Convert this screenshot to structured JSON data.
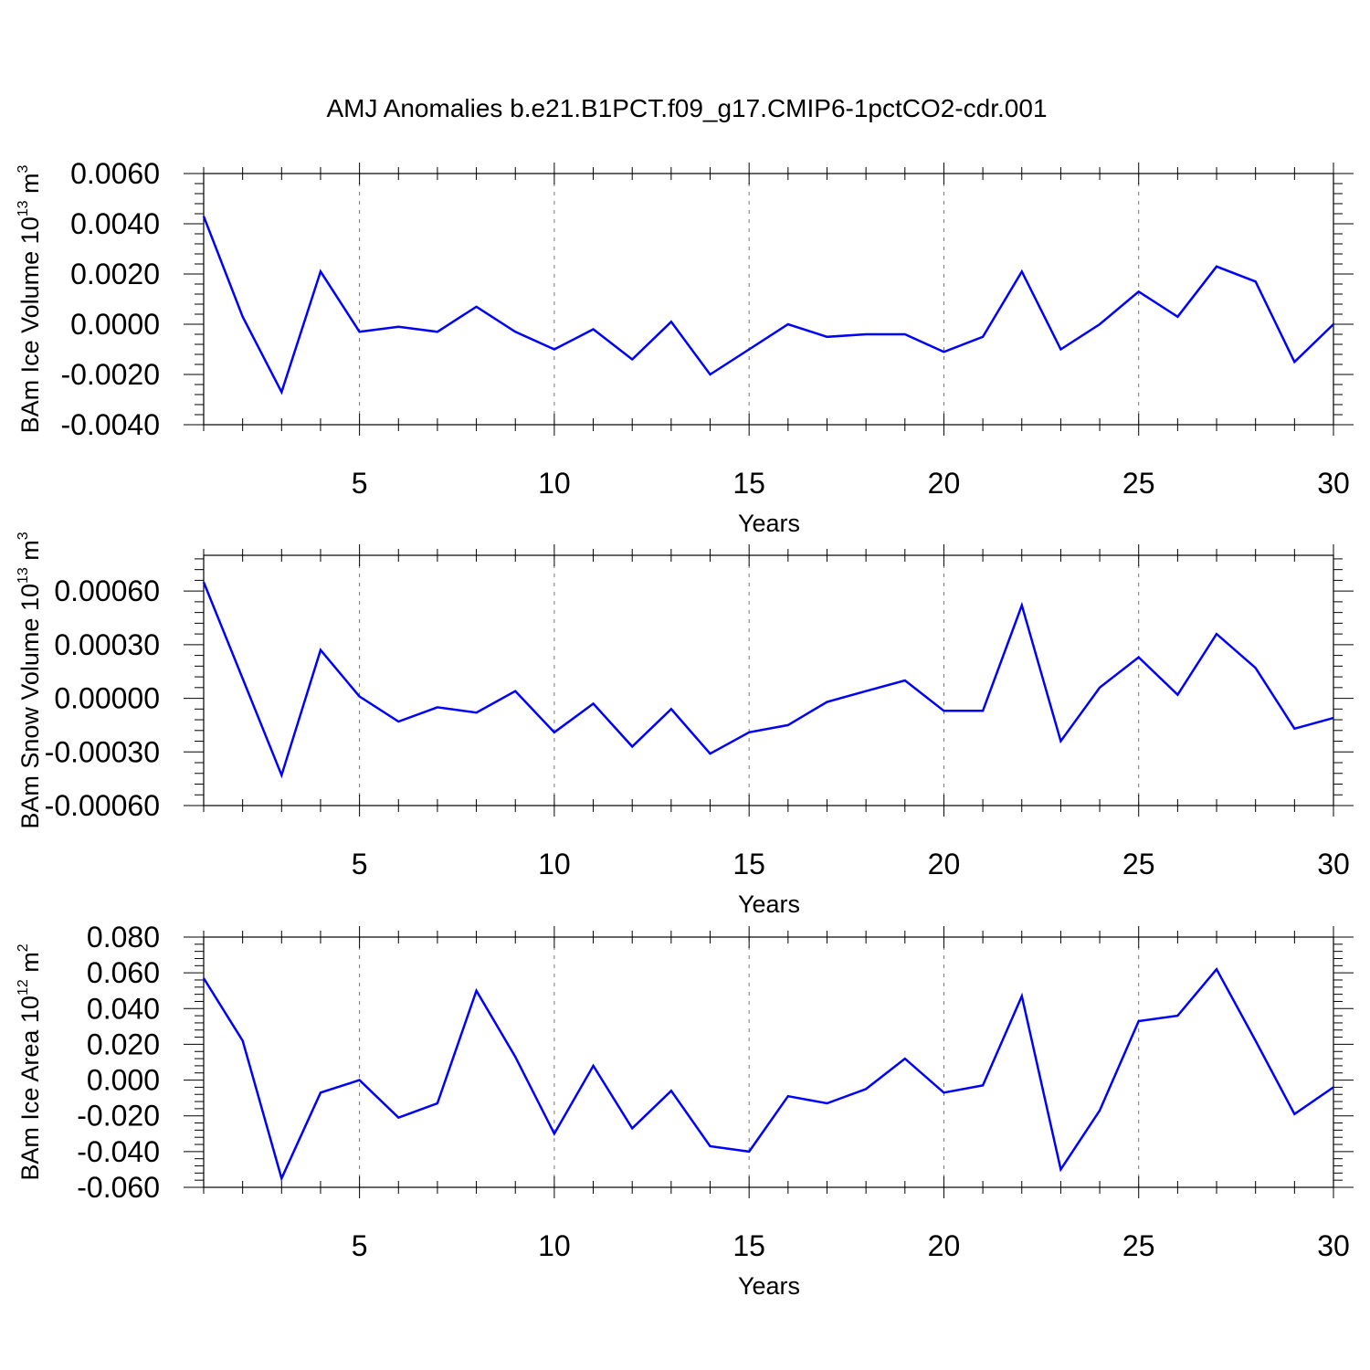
{
  "title": "AMJ Anomalies b.e21.B1PCT.f09_g17.CMIP6-1pctCO2-cdr.001",
  "line_color": "#0000ff",
  "chart_data": [
    {
      "type": "line",
      "ylabel": "BAm Ice Volume",
      "yunit_base": "10",
      "yunit_exp": "13",
      "yunit_dim": "m",
      "yunit_dim_exp": "3",
      "xlabel": "Years",
      "xlim": [
        1,
        30
      ],
      "ylim": [
        -0.004,
        0.006
      ],
      "y_ticks": [
        -0.004,
        -0.002,
        0.0,
        0.002,
        0.004,
        0.006
      ],
      "y_tick_labels": [
        "-0.0040",
        "-0.0020",
        "0.0000",
        "0.0020",
        "0.0040",
        "0.0060"
      ],
      "x_ticks": [
        5,
        10,
        15,
        20,
        25,
        30
      ],
      "x_tick_labels": [
        "5",
        "10",
        "15",
        "20",
        "25",
        "30"
      ],
      "x": [
        1,
        2,
        3,
        4,
        5,
        6,
        7,
        8,
        9,
        10,
        11,
        12,
        13,
        14,
        15,
        16,
        17,
        18,
        19,
        20,
        21,
        22,
        23,
        24,
        25,
        26,
        27,
        28,
        29,
        30
      ],
      "y": [
        0.0043,
        0.0003,
        -0.0027,
        0.0021,
        -0.0003,
        -0.0001,
        -0.0003,
        0.0007,
        -0.0003,
        -0.001,
        -0.0002,
        -0.0014,
        0.0001,
        -0.002,
        -0.001,
        0.0,
        -0.0005,
        -0.0004,
        -0.0004,
        -0.0011,
        -0.0005,
        0.0021,
        -0.001,
        0.0,
        0.0013,
        0.0003,
        0.0023,
        0.0017,
        -0.0015,
        0.0
      ]
    },
    {
      "type": "line",
      "ylabel": "BAm Snow Volume",
      "yunit_base": "10",
      "yunit_exp": "13",
      "yunit_dim": "m",
      "yunit_dim_exp": "3",
      "xlabel": "Years",
      "xlim": [
        1,
        30
      ],
      "ylim": [
        -0.0006,
        0.0008
      ],
      "y_ticks": [
        -0.0006,
        -0.0003,
        0.0,
        0.0003,
        0.0006
      ],
      "y_tick_labels": [
        "-0.00060",
        "-0.00030",
        "0.00000",
        "0.00030",
        "0.00060"
      ],
      "x_ticks": [
        5,
        10,
        15,
        20,
        25,
        30
      ],
      "x_tick_labels": [
        "5",
        "10",
        "15",
        "20",
        "25",
        "30"
      ],
      "x": [
        1,
        2,
        3,
        4,
        5,
        6,
        7,
        8,
        9,
        10,
        11,
        12,
        13,
        14,
        15,
        16,
        17,
        18,
        19,
        20,
        21,
        22,
        23,
        24,
        25,
        26,
        27,
        28,
        29,
        30
      ],
      "y": [
        0.00065,
        0.00011,
        -0.00043,
        0.00027,
        1e-05,
        -0.00013,
        -5e-05,
        -8e-05,
        4e-05,
        -0.00019,
        -3e-05,
        -0.00027,
        -6e-05,
        -0.00031,
        -0.00019,
        -0.00015,
        -2e-05,
        4e-05,
        0.0001,
        -7e-05,
        -7e-05,
        0.00052,
        -0.00024,
        6e-05,
        0.00023,
        2e-05,
        0.00036,
        0.00017,
        -0.00017,
        -0.00011
      ]
    },
    {
      "type": "line",
      "ylabel": "BAm Ice Area",
      "yunit_base": "10",
      "yunit_exp": "12",
      "yunit_dim": "m",
      "yunit_dim_exp": "2",
      "xlabel": "Years",
      "xlim": [
        1,
        30
      ],
      "ylim": [
        -0.06,
        0.08
      ],
      "y_ticks": [
        -0.06,
        -0.04,
        -0.02,
        0.0,
        0.02,
        0.04,
        0.06,
        0.08
      ],
      "y_tick_labels": [
        "-0.060",
        "-0.040",
        "-0.020",
        "0.000",
        "0.020",
        "0.040",
        "0.060",
        "0.080"
      ],
      "x_ticks": [
        5,
        10,
        15,
        20,
        25,
        30
      ],
      "x_tick_labels": [
        "5",
        "10",
        "15",
        "20",
        "25",
        "30"
      ],
      "x": [
        1,
        2,
        3,
        4,
        5,
        6,
        7,
        8,
        9,
        10,
        11,
        12,
        13,
        14,
        15,
        16,
        17,
        18,
        19,
        20,
        21,
        22,
        23,
        24,
        25,
        26,
        27,
        28,
        29,
        30
      ],
      "y": [
        0.057,
        0.022,
        -0.055,
        -0.007,
        0.0,
        -0.021,
        -0.013,
        0.05,
        0.013,
        -0.03,
        0.008,
        -0.027,
        -0.006,
        -0.037,
        -0.04,
        -0.009,
        -0.013,
        -0.005,
        0.012,
        -0.007,
        -0.003,
        0.047,
        -0.05,
        -0.017,
        0.033,
        0.036,
        0.062,
        0.022,
        -0.019,
        -0.004
      ]
    }
  ]
}
